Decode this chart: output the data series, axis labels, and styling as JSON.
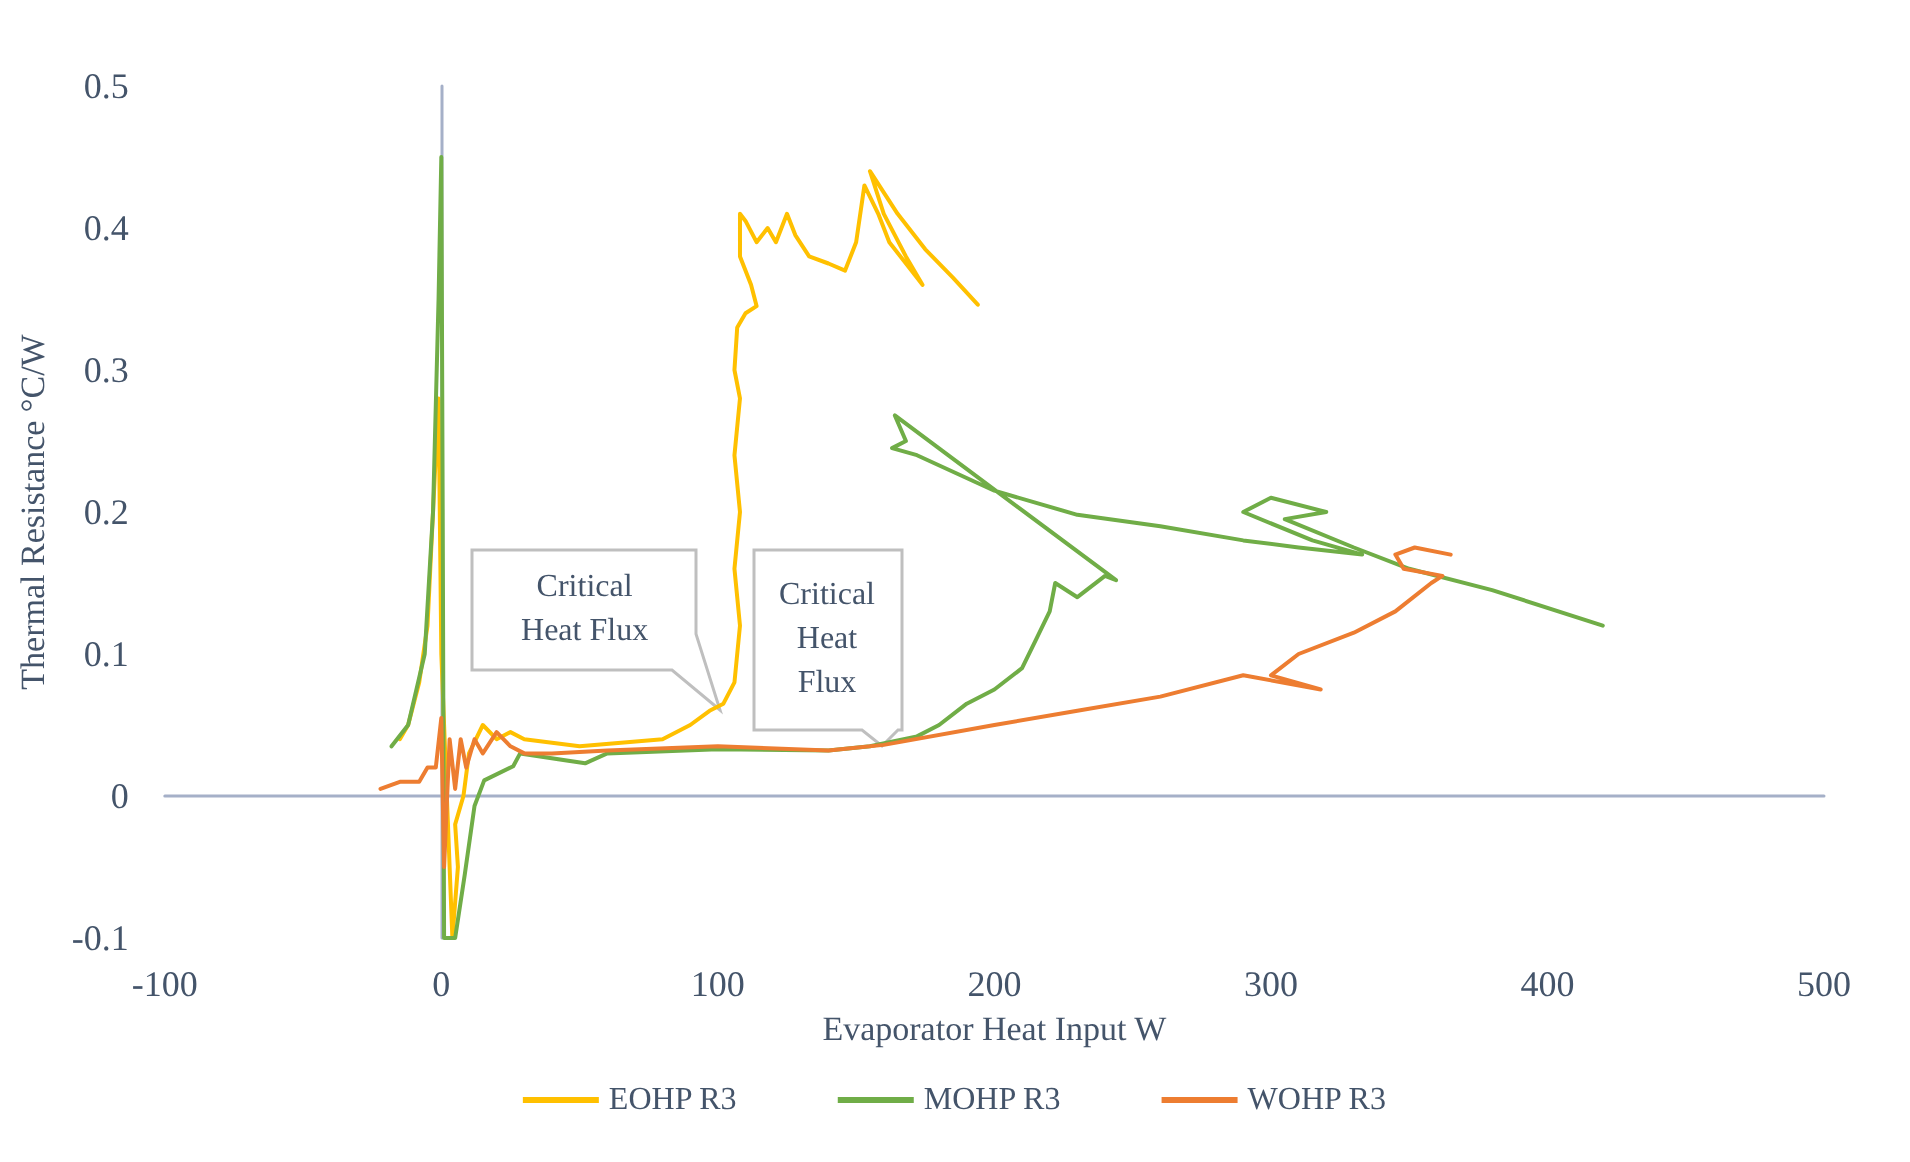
{
  "chart_data": {
    "type": "line",
    "xlabel": "Evaporator Heat Input W",
    "ylabel": "Thermal Resistance °C/W",
    "xlim": [
      -100,
      500
    ],
    "xticks": [
      -100,
      0,
      100,
      200,
      300,
      400,
      500
    ],
    "ylim": [
      -0.1,
      0.5
    ],
    "yticks": [
      -0.1,
      0,
      0.1,
      0.2,
      0.3,
      0.4,
      0.5
    ],
    "legend": "bottom",
    "marker": "none",
    "line_style": "solid",
    "annotations": [
      {
        "text": "Critical Heat Flux",
        "x": 101,
        "y": 0.06
      },
      {
        "text": "Critical Heat Flux",
        "x": 159,
        "y": 0.035
      }
    ],
    "series": [
      {
        "name": "EOHP R3",
        "color": "#ffc000",
        "x": [
          -15,
          -12,
          -8,
          -5,
          -3,
          -1,
          0,
          2,
          4,
          6,
          5,
          8,
          10,
          15,
          20,
          25,
          30,
          50,
          80,
          90,
          97,
          102,
          106,
          108,
          106,
          108,
          106,
          108,
          106,
          107,
          110,
          114,
          112,
          108,
          108,
          110,
          114,
          118,
          121,
          125,
          128,
          133,
          140,
          146,
          150,
          153,
          158,
          162,
          170,
          174,
          168,
          160,
          155,
          165,
          175,
          185,
          194
        ],
        "values": [
          0.04,
          0.05,
          0.08,
          0.12,
          0.2,
          0.28,
          0.1,
          0,
          -0.1,
          -0.05,
          -0.02,
          0,
          0.03,
          0.05,
          0.04,
          0.045,
          0.04,
          0.035,
          0.04,
          0.05,
          0.06,
          0.065,
          0.08,
          0.12,
          0.16,
          0.2,
          0.24,
          0.28,
          0.3,
          0.33,
          0.34,
          0.345,
          0.36,
          0.38,
          0.41,
          0.405,
          0.39,
          0.4,
          0.39,
          0.41,
          0.395,
          0.38,
          0.375,
          0.37,
          0.39,
          0.43,
          0.41,
          0.39,
          0.37,
          0.36,
          0.38,
          0.41,
          0.44,
          0.41,
          0.385,
          0.365,
          0.346
        ]
      },
      {
        "name": "MOHP R3",
        "color": "#70ad47",
        "x": [
          -18,
          -12,
          -6,
          -3,
          -1,
          0,
          0.5,
          1,
          3,
          5,
          8.5,
          12,
          15.5,
          26,
          28.5,
          52,
          60,
          100,
          140,
          155,
          172,
          180,
          190,
          200,
          210,
          215,
          220,
          222,
          230,
          240,
          244,
          164,
          168,
          163,
          172,
          200,
          230,
          260,
          290,
          310,
          333,
          315,
          290,
          300,
          320,
          305,
          330,
          350,
          380,
          420
        ],
        "values": [
          0.035,
          0.05,
          0.1,
          0.2,
          0.35,
          0.45,
          0.2,
          -0.1,
          -0.1,
          -0.1,
          -0.055,
          -0.007,
          0.011,
          0.021,
          0.03,
          0.023,
          0.03,
          0.033,
          0.032,
          0.035,
          0.042,
          0.05,
          0.065,
          0.075,
          0.09,
          0.11,
          0.13,
          0.15,
          0.14,
          0.155,
          0.152,
          0.268,
          0.25,
          0.245,
          0.24,
          0.215,
          0.198,
          0.19,
          0.18,
          0.175,
          0.17,
          0.18,
          0.2,
          0.21,
          0.2,
          0.195,
          0.175,
          0.16,
          0.145,
          0.12
        ]
      },
      {
        "name": "WOHP R3",
        "color": "#ed7d31",
        "x": [
          -22,
          -15,
          -8,
          -5,
          -2,
          0,
          0.5,
          1,
          3,
          5,
          7,
          9,
          12,
          15,
          20,
          25,
          30,
          40,
          60,
          100,
          140,
          160,
          200,
          230,
          260,
          290,
          318,
          300,
          310,
          330,
          345,
          358,
          362,
          348,
          345,
          352,
          365
        ],
        "values": [
          0.005,
          0.01,
          0.01,
          0.02,
          0.02,
          0.055,
          0,
          -0.05,
          0.04,
          0.005,
          0.04,
          0.02,
          0.04,
          0.03,
          0.045,
          0.035,
          0.03,
          0.03,
          0.032,
          0.035,
          0.032,
          0.036,
          0.05,
          0.06,
          0.07,
          0.085,
          0.075,
          0.085,
          0.1,
          0.115,
          0.13,
          0.15,
          0.155,
          0.16,
          0.17,
          0.175,
          0.17
        ]
      }
    ]
  }
}
